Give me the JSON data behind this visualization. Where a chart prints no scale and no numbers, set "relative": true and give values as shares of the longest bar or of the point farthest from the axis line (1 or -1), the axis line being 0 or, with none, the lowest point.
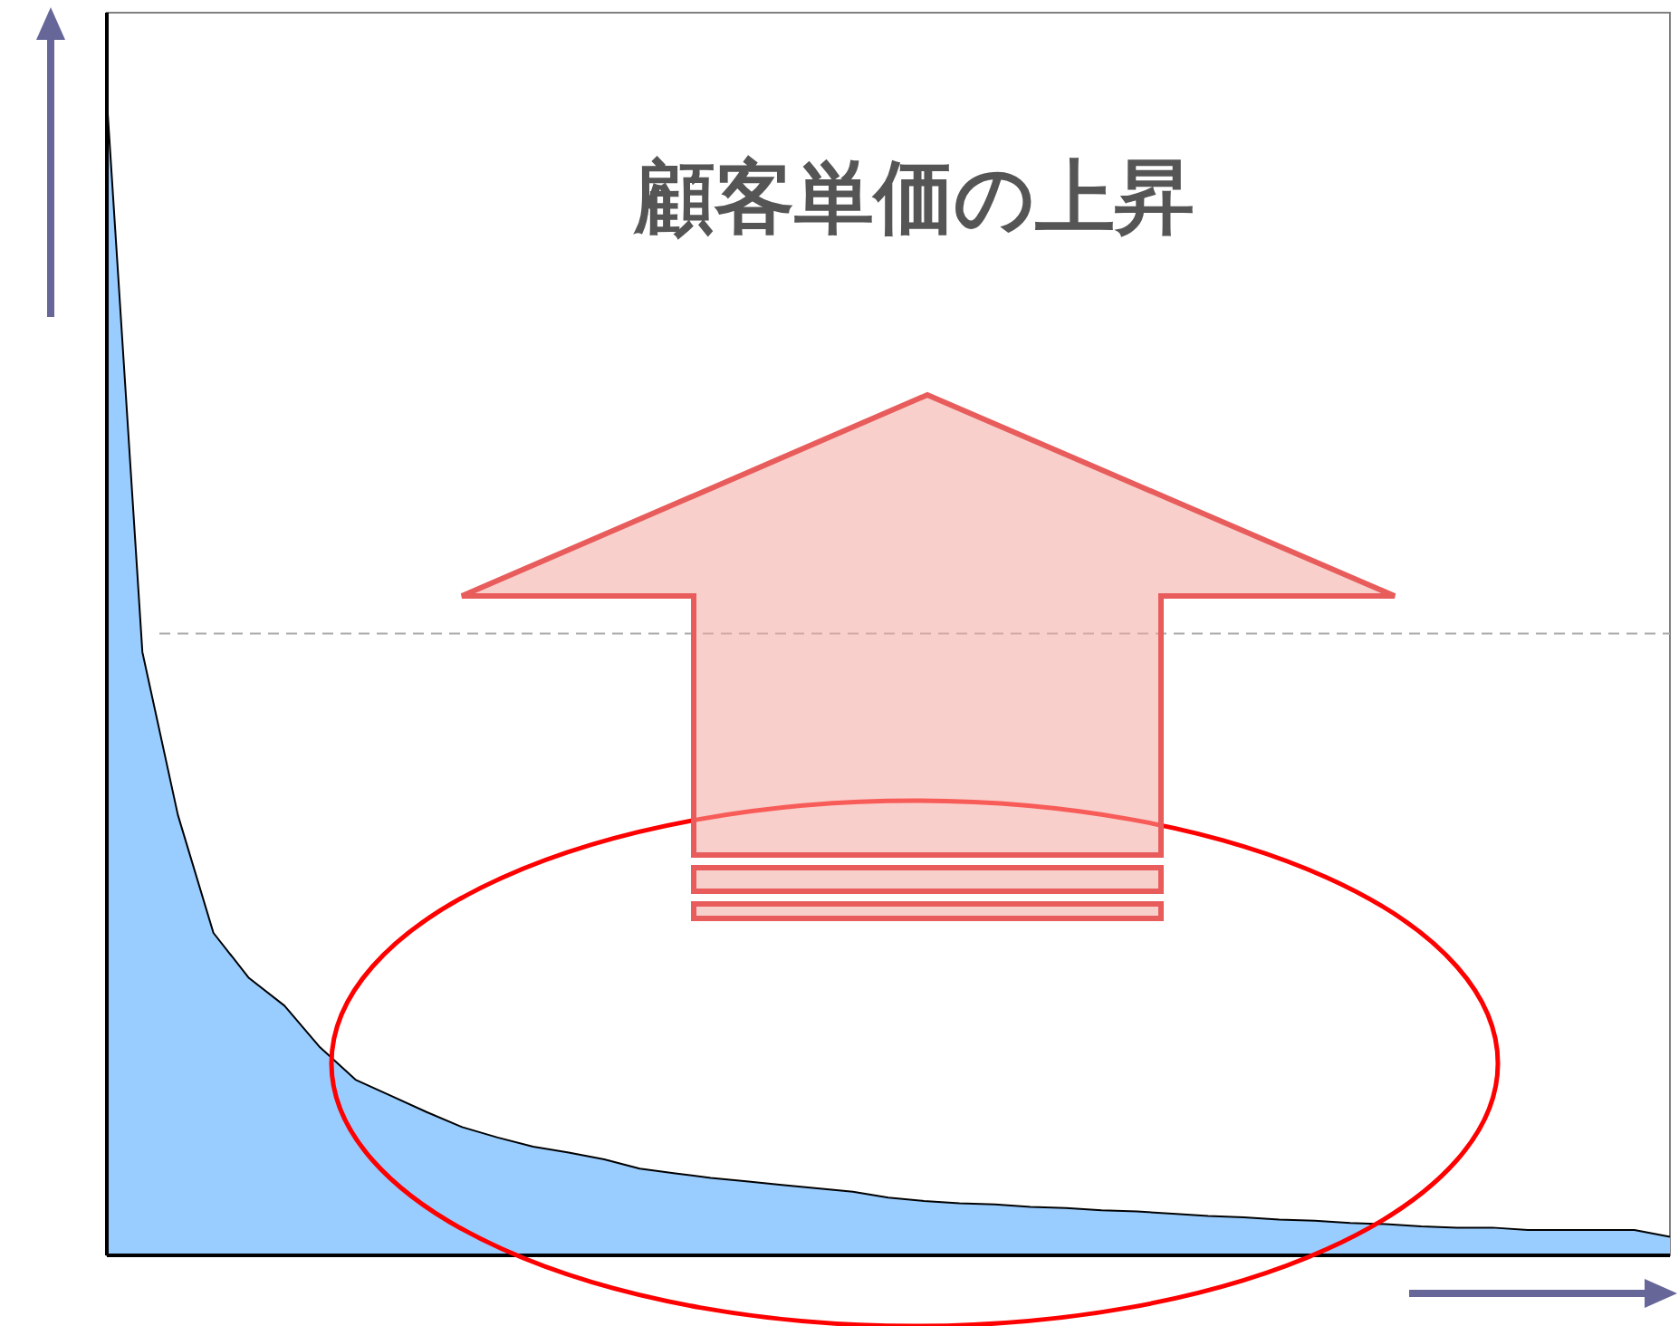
{
  "chart_data": {
    "type": "area",
    "title": "顧客単価の上昇",
    "relative": true,
    "categories": [
      null,
      null,
      null,
      null,
      null,
      null,
      null,
      null,
      null,
      null,
      null,
      null,
      null,
      null,
      null,
      null,
      null,
      null,
      null,
      null,
      null,
      null,
      null,
      null,
      null,
      null,
      null,
      null,
      null,
      null,
      null,
      null,
      null,
      null,
      null,
      null,
      null,
      null,
      null,
      null,
      null,
      null,
      null,
      null,
      null
    ],
    "series": [
      {
        "color": "#99ccff",
        "values": [
          1.0,
          0.522,
          0.381,
          0.279,
          0.24,
          0.216,
          0.18,
          0.152,
          0.138,
          0.124,
          0.111,
          0.102,
          0.094,
          0.089,
          0.083,
          0.075,
          0.071,
          0.067,
          0.064,
          0.061,
          0.058,
          0.055,
          0.05,
          0.047,
          0.045,
          0.044,
          0.042,
          0.041,
          0.039,
          0.038,
          0.036,
          0.034,
          0.033,
          0.031,
          0.03,
          0.028,
          0.027,
          0.025,
          0.024,
          0.024,
          0.022,
          0.022,
          0.022,
          0.022,
          0.016
        ]
      }
    ],
    "ref_lines": [
      {
        "axis": "y",
        "value": 0.538,
        "color": "#aaaaaa",
        "line_style": "dashed"
      }
    ]
  }
}
